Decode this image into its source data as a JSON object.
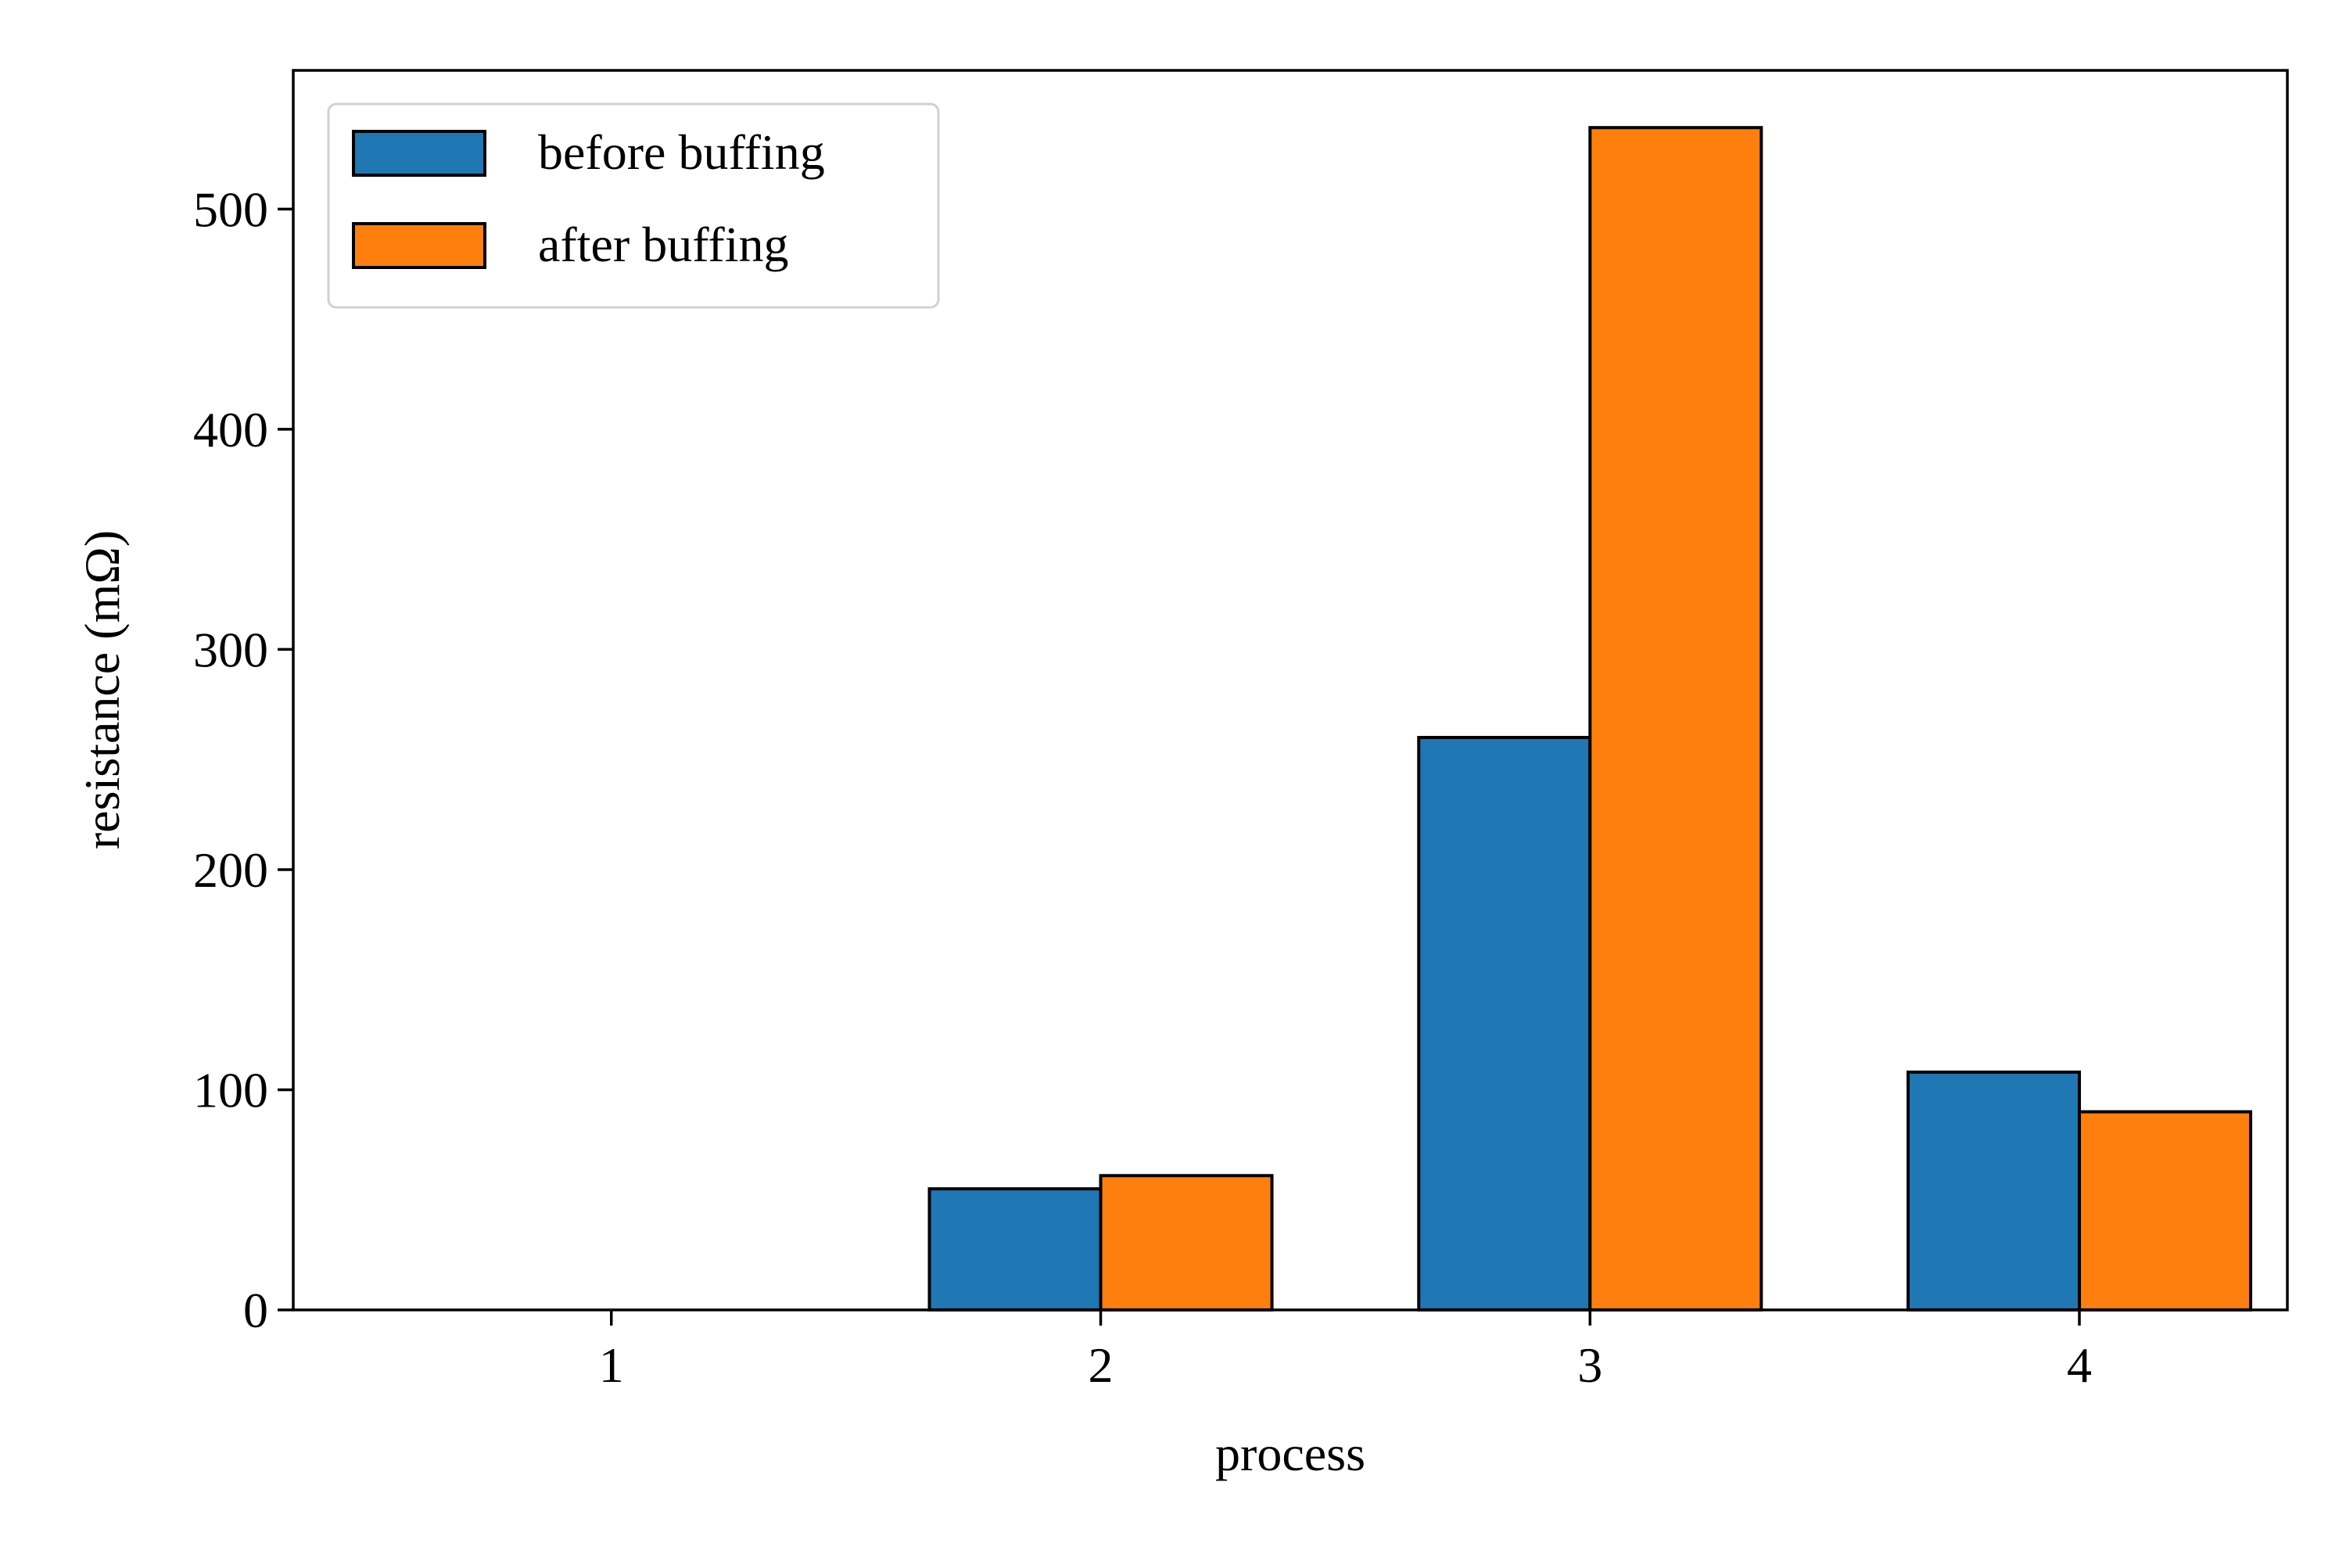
{
  "chart_data": {
    "type": "bar",
    "title": "",
    "xlabel": "process",
    "ylabel": "resistance (mΩ)",
    "categories": [
      "1",
      "2",
      "3",
      "4"
    ],
    "series": [
      {
        "name": "before buffing",
        "color": "#1f77b4",
        "values": [
          0,
          55,
          260,
          108
        ]
      },
      {
        "name": "after buffing",
        "color": "#ff7f0e",
        "values": [
          0,
          61,
          537,
          90
        ]
      }
    ],
    "ylim": [
      0,
      563
    ],
    "yticks": [
      0,
      100,
      200,
      300,
      400,
      500
    ],
    "grid": false,
    "legend": "top-left",
    "bar_edge_color": "#000000"
  }
}
